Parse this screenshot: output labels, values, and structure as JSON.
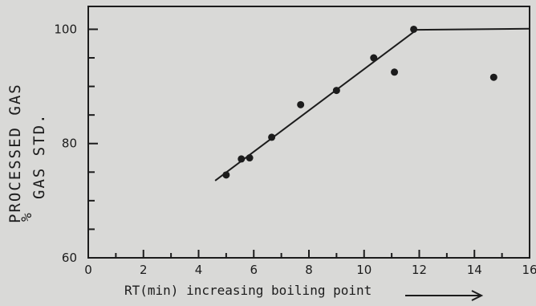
{
  "background_text": [],
  "chart_data": {
    "type": "scatter",
    "title": "",
    "xlabel": "RT(min) increasing boiling point",
    "ylabel_line1": "PROCESSED GAS",
    "ylabel_line2": "GAS STD.",
    "ylabel_prefix": "%",
    "xlim": [
      0,
      16
    ],
    "ylim": [
      60,
      104
    ],
    "x_ticks": [
      0,
      2,
      4,
      6,
      8,
      10,
      12,
      14,
      16
    ],
    "y_ticks": [
      60,
      80,
      100
    ],
    "grid": false,
    "points": [
      {
        "x": 5.0,
        "y": 74.5
      },
      {
        "x": 5.55,
        "y": 77.3
      },
      {
        "x": 5.85,
        "y": 77.5
      },
      {
        "x": 6.65,
        "y": 81.1
      },
      {
        "x": 7.7,
        "y": 86.8
      },
      {
        "x": 9.0,
        "y": 89.3
      },
      {
        "x": 10.35,
        "y": 95.0
      },
      {
        "x": 11.1,
        "y": 92.5
      },
      {
        "x": 11.8,
        "y": 100.0
      },
      {
        "x": 14.7,
        "y": 91.6
      }
    ],
    "fit_line": [
      {
        "x": 4.6,
        "y": 73.5
      },
      {
        "x": 11.9,
        "y": 99.9
      },
      {
        "x": 16.0,
        "y": 100.1
      }
    ]
  }
}
